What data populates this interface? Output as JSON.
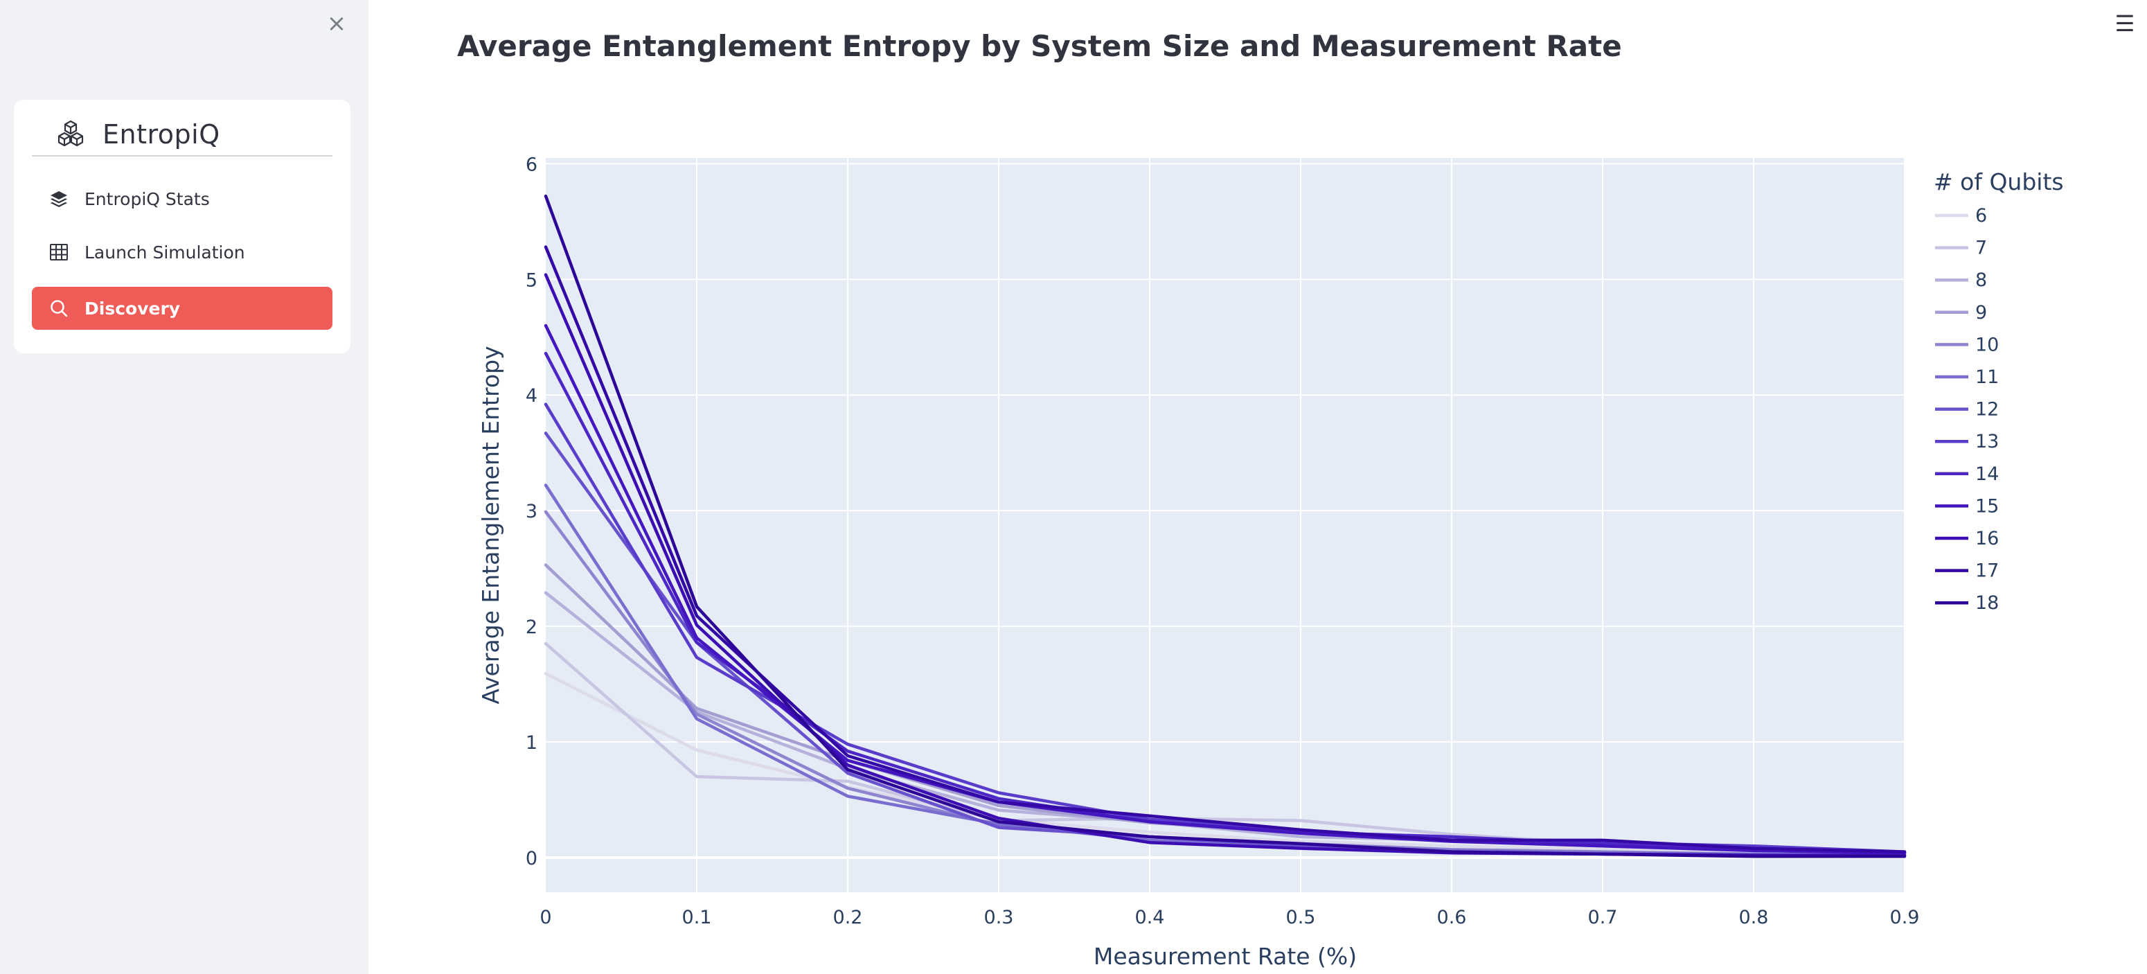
{
  "sidebar": {
    "close_label": "×",
    "brand": {
      "name": "EntropiQ",
      "icon": "cubes-icon"
    },
    "items": [
      {
        "label": "EntropiQ Stats",
        "icon": "layers-icon",
        "active": false
      },
      {
        "label": "Launch Simulation",
        "icon": "grid-icon",
        "active": false
      },
      {
        "label": "Discovery",
        "icon": "search-icon",
        "active": true
      }
    ]
  },
  "header": {
    "menu_label": "☰"
  },
  "main": {
    "title": "Average Entanglement Entropy by System Size and Measurement Rate"
  },
  "colors": {
    "accent": "#ef5b57",
    "plot_bg": "#e5ecf6"
  },
  "chart_data": {
    "type": "line",
    "title": "Average Entanglement Entropy by System Size and Measurement Rate",
    "xlabel": "Measurement Rate (%)",
    "ylabel": "Average Entanglement Entropy",
    "xlim": [
      0,
      0.9
    ],
    "ylim": [
      -0.3,
      6.05
    ],
    "xticks": [
      "0",
      "0.1",
      "0.2",
      "0.3",
      "0.4",
      "0.5",
      "0.6",
      "0.7",
      "0.8",
      "0.9"
    ],
    "yticks": [
      "0",
      "1",
      "2",
      "3",
      "4",
      "5",
      "6"
    ],
    "grid": true,
    "legend_title": "# of Qubits",
    "legend_position": "right",
    "x": [
      0,
      0.1,
      0.2,
      0.3,
      0.4,
      0.5,
      0.6,
      0.7,
      0.8,
      0.9
    ],
    "series": [
      {
        "name": "6",
        "color": "#dcdaeb",
        "values": [
          1.59,
          0.93,
          0.61,
          0.33,
          0.22,
          0.14,
          0.1,
          0.07,
          0.05,
          0.03
        ]
      },
      {
        "name": "7",
        "color": "#c8c5e2",
        "values": [
          1.85,
          0.7,
          0.66,
          0.32,
          0.34,
          0.32,
          0.2,
          0.12,
          0.08,
          0.04
        ]
      },
      {
        "name": "8",
        "color": "#b6b1da",
        "values": [
          2.29,
          1.26,
          0.77,
          0.41,
          0.31,
          0.18,
          0.15,
          0.11,
          0.07,
          0.04
        ]
      },
      {
        "name": "9",
        "color": "#a49dd1",
        "values": [
          2.53,
          1.29,
          0.84,
          0.45,
          0.3,
          0.22,
          0.17,
          0.12,
          0.08,
          0.04
        ]
      },
      {
        "name": "10",
        "color": "#8e84cf",
        "values": [
          2.99,
          1.24,
          0.6,
          0.28,
          0.18,
          0.12,
          0.07,
          0.05,
          0.03,
          0.02
        ]
      },
      {
        "name": "11",
        "color": "#7a6dd0",
        "values": [
          3.22,
          1.2,
          0.53,
          0.29,
          0.15,
          0.1,
          0.06,
          0.04,
          0.03,
          0.02
        ]
      },
      {
        "name": "12",
        "color": "#6751cc",
        "values": [
          3.67,
          1.86,
          0.73,
          0.26,
          0.18,
          0.1,
          0.05,
          0.03,
          0.02,
          0.02
        ]
      },
      {
        "name": "13",
        "color": "#5a3ccb",
        "values": [
          3.92,
          1.73,
          0.98,
          0.56,
          0.33,
          0.24,
          0.15,
          0.13,
          0.1,
          0.05
        ]
      },
      {
        "name": "14",
        "color": "#4d27c6",
        "values": [
          4.36,
          1.86,
          0.92,
          0.51,
          0.31,
          0.22,
          0.18,
          0.12,
          0.07,
          0.04
        ]
      },
      {
        "name": "15",
        "color": "#4316bf",
        "values": [
          4.6,
          1.9,
          0.84,
          0.48,
          0.31,
          0.21,
          0.14,
          0.1,
          0.06,
          0.04
        ]
      },
      {
        "name": "16",
        "color": "#3b0db3",
        "values": [
          5.04,
          2.01,
          0.8,
          0.34,
          0.13,
          0.08,
          0.04,
          0.03,
          0.02,
          0.02
        ]
      },
      {
        "name": "17",
        "color": "#3408a5",
        "values": [
          5.28,
          2.09,
          0.88,
          0.48,
          0.36,
          0.24,
          0.15,
          0.15,
          0.08,
          0.05
        ]
      },
      {
        "name": "18",
        "color": "#2d0597",
        "values": [
          5.72,
          2.17,
          0.76,
          0.31,
          0.18,
          0.12,
          0.05,
          0.03,
          0.01,
          0.01
        ]
      }
    ]
  }
}
